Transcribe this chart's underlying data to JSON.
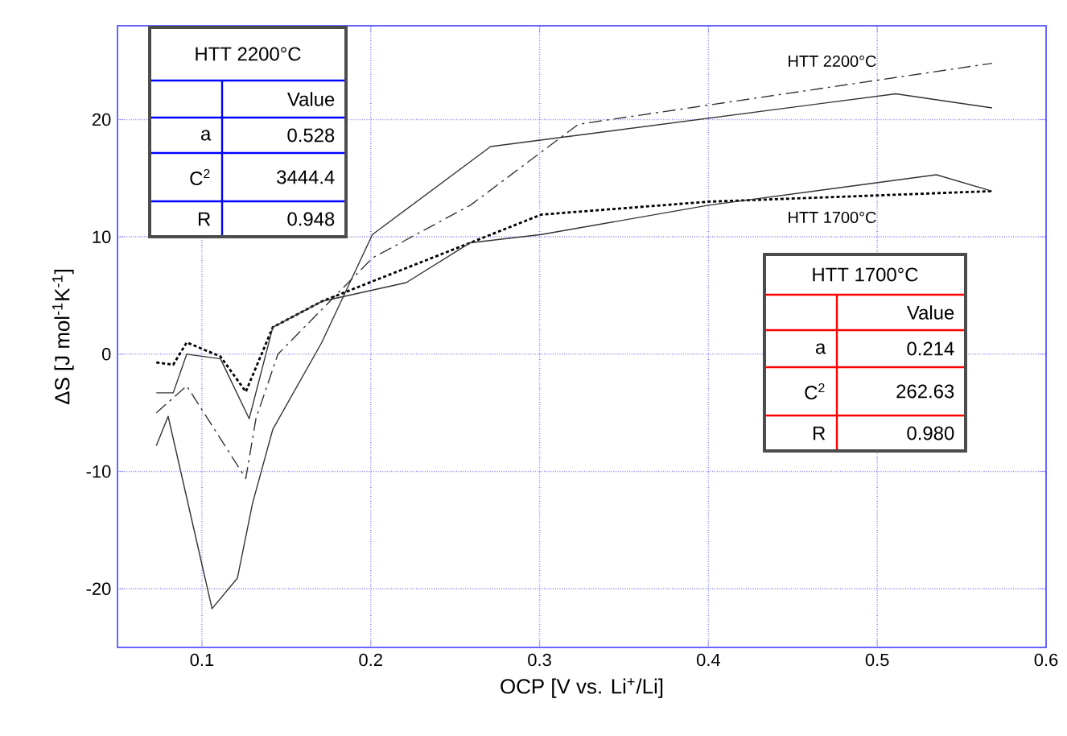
{
  "chart_data": {
    "type": "line",
    "xlabel": "OCP [V vs. Li$^{+}$/Li]",
    "ylabel": "ΔS [J mol$^{-1}$K$^{-1}$]",
    "xlim": [
      0.05,
      0.6
    ],
    "ylim": [
      -25,
      28
    ],
    "xticks": [
      0.1,
      0.2,
      0.3,
      0.4,
      0.5,
      0.6
    ],
    "yticks": [
      -20,
      -10,
      0,
      10,
      20
    ],
    "grid": true,
    "marker": "none",
    "series": [
      {
        "color": "#333333",
        "line_style": "solid",
        "x": [
          0.073,
          0.08,
          0.106,
          0.121,
          0.13,
          0.142,
          0.171,
          0.201,
          0.271,
          0.511,
          0.568
        ],
        "values": [
          -7.8,
          -5.3,
          -21.7,
          -19.1,
          -12.7,
          -6.4,
          1.0,
          10.2,
          17.7,
          22.2,
          21.0
        ]
      },
      {
        "color": "#333333",
        "line_style": "dashdot",
        "x": [
          0.073,
          0.091,
          0.126,
          0.132,
          0.145,
          0.201,
          0.259,
          0.323,
          0.568
        ],
        "values": [
          -5.0,
          -2.7,
          -10.6,
          -5.5,
          0,
          8.2,
          12.7,
          19.6,
          24.8
        ]
      },
      {
        "color": "#000000",
        "line_style": "dotted",
        "x": [
          0.073,
          0.083,
          0.091,
          0.111,
          0.126,
          0.142,
          0.171,
          0.259,
          0.301,
          0.4,
          0.568
        ],
        "values": [
          -0.7,
          -0.9,
          1.0,
          -0.2,
          -3.2,
          2.3,
          4.5,
          9.5,
          11.9,
          13.0,
          13.9
        ]
      },
      {
        "color": "#333333",
        "line_style": "solid",
        "x": [
          0.073,
          0.083,
          0.091,
          0.111,
          0.128,
          0.142,
          0.171,
          0.221,
          0.259,
          0.301,
          0.4,
          0.535,
          0.568
        ],
        "values": [
          -3.3,
          -3.3,
          0,
          -0.4,
          -5.5,
          2.3,
          4.5,
          6.1,
          9.5,
          10.2,
          12.7,
          15.3,
          13.9
        ]
      }
    ],
    "annotations": [
      "HTT 2200°C",
      "HTT 1700°C",
      "HTT 2200°C",
      "Value",
      "a",
      "0.528",
      "C$^{2}$",
      "3444.4",
      "R",
      "0.948",
      "HTT 1700°C",
      "Value",
      "a",
      "0.214",
      "C$^{2}$",
      "262.63",
      "R",
      "0.980"
    ]
  }
}
